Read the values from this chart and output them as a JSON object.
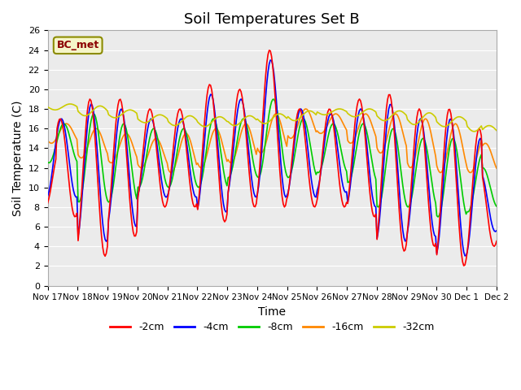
{
  "title": "Soil Temperatures Set B",
  "xlabel": "Time",
  "ylabel": "Soil Temperature (C)",
  "ylim": [
    0,
    26
  ],
  "n_days": 16,
  "annotation": "BC_met",
  "legend_labels": [
    "-2cm",
    "-4cm",
    "-8cm",
    "-16cm",
    "-32cm"
  ],
  "legend_colors": [
    "#ff0000",
    "#0000ff",
    "#00cc00",
    "#ff8800",
    "#cccc00"
  ],
  "tick_labels": [
    "Nov 17",
    "Nov 18",
    "Nov 19",
    "Nov 20",
    "Nov 21",
    "Nov 22",
    "Nov 23",
    "Nov 24",
    "Nov 25",
    "Nov 26",
    "Nov 27",
    "Nov 28",
    "Nov 29",
    "Nov 30",
    "Dec 1",
    "Dec 2"
  ],
  "title_fontsize": 13,
  "axis_fontsize": 10,
  "legend_fontsize": 9
}
